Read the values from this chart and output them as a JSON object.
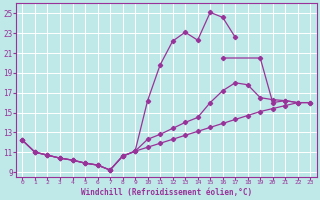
{
  "xlabel": "Windchill (Refroidissement éolien,°C)",
  "background_color": "#bfe8e8",
  "grid_color": "#ffffff",
  "line_color": "#993399",
  "xlim": [
    -0.5,
    23.5
  ],
  "ylim": [
    8.5,
    26.0
  ],
  "xticks": [
    0,
    1,
    2,
    3,
    4,
    5,
    6,
    7,
    8,
    9,
    10,
    11,
    12,
    13,
    14,
    15,
    16,
    17,
    18,
    19,
    20,
    21,
    22,
    23
  ],
  "yticks": [
    9,
    11,
    13,
    15,
    17,
    19,
    21,
    23,
    25
  ],
  "curve1_x": [
    0,
    1,
    2,
    3,
    4,
    5,
    6,
    7,
    8,
    9,
    10,
    11,
    12,
    13,
    14,
    15,
    16,
    17,
    18,
    19,
    20,
    21,
    22,
    23
  ],
  "curve1_y": [
    12.2,
    11.0,
    10.7,
    10.4,
    10.2,
    9.9,
    9.7,
    9.2,
    10.6,
    11.1,
    16.2,
    19.8,
    22.2,
    23.1,
    22.3,
    25.1,
    24.6,
    22.6,
    null,
    null,
    null,
    null,
    null,
    null
  ],
  "curve2_x": [
    0,
    1,
    2,
    3,
    4,
    5,
    6,
    7,
    8,
    9,
    10,
    11,
    12,
    13,
    14,
    15,
    16,
    17,
    18,
    19,
    20,
    21,
    22,
    23
  ],
  "curve2_y": [
    12.2,
    11.0,
    10.7,
    10.4,
    10.2,
    9.9,
    9.7,
    9.2,
    10.6,
    11.1,
    12.3,
    12.8,
    13.4,
    14.0,
    14.5,
    16.0,
    17.2,
    18.0,
    17.8,
    16.5,
    16.3,
    16.2,
    16.0,
    null
  ],
  "curve3_x": [
    0,
    1,
    2,
    3,
    4,
    5,
    6,
    7,
    8,
    9,
    10,
    11,
    12,
    13,
    14,
    15,
    16,
    17,
    18,
    19,
    20,
    21,
    22,
    23
  ],
  "curve3_y": [
    12.2,
    11.0,
    10.7,
    10.4,
    10.2,
    9.9,
    9.7,
    9.2,
    10.6,
    11.1,
    11.5,
    11.9,
    12.3,
    12.7,
    13.1,
    13.5,
    13.9,
    14.3,
    14.7,
    15.1,
    15.4,
    15.7,
    16.0,
    16.0
  ],
  "curve_extra_x": [
    16,
    19,
    20,
    21,
    22,
    23
  ],
  "curve_extra_y": [
    20.5,
    20.5,
    16.0,
    16.2,
    16.0,
    16.0
  ]
}
